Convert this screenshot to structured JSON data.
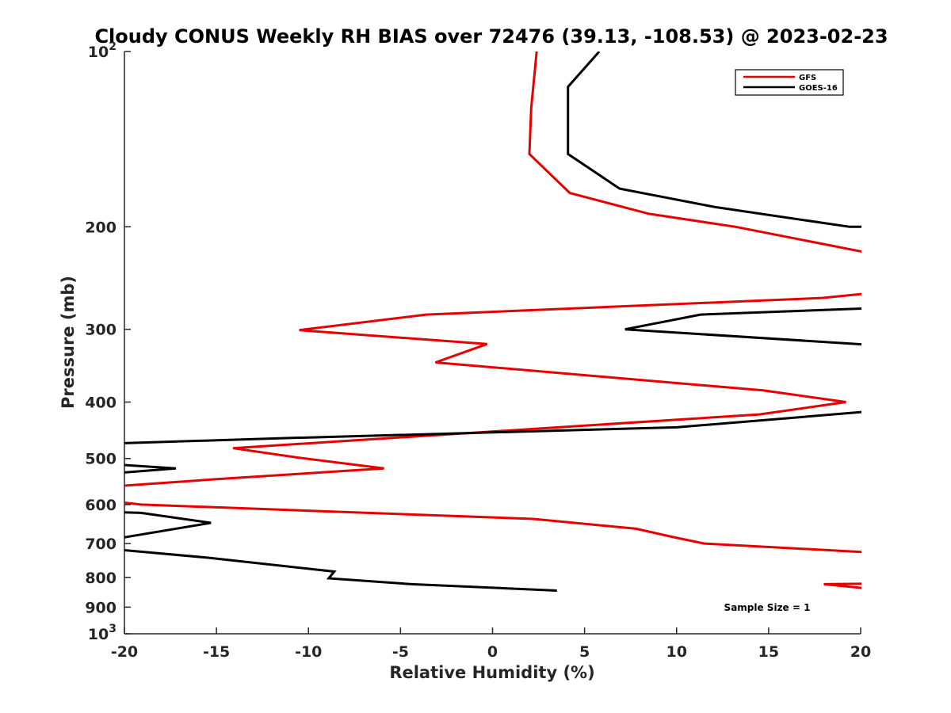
{
  "chart_data": {
    "type": "line",
    "title": "Cloudy CONUS Weekly RH BIAS over 72476 (39.13, -108.53) @ 2023-02-23",
    "xlabel": "Relative Humidity (%)",
    "ylabel": "Pressure (mb)",
    "xlim": [
      -20,
      20
    ],
    "ylim": [
      100,
      1000
    ],
    "yscale": "log",
    "y_reversed": true,
    "x_ticks": [
      "-20",
      "-15",
      "-10",
      "-5",
      "0",
      "5",
      "10",
      "15",
      "20"
    ],
    "y_ticks": [
      {
        "value": 100,
        "base": "10",
        "exp": "2"
      },
      {
        "value": 200,
        "label": "200"
      },
      {
        "value": 300,
        "label": "300"
      },
      {
        "value": 400,
        "label": "400"
      },
      {
        "value": 500,
        "label": "500"
      },
      {
        "value": 600,
        "label": "600"
      },
      {
        "value": 700,
        "label": "700"
      },
      {
        "value": 800,
        "label": "800"
      },
      {
        "value": 900,
        "label": "900"
      },
      {
        "value": 1000,
        "base": "10",
        "exp": "3"
      }
    ],
    "grid": false,
    "legend_position": "top-right",
    "annotation": "Sample Size = 1",
    "series": [
      {
        "name": "GFS",
        "color": "#e60000",
        "points": [
          [
            2.4,
            100
          ],
          [
            2.1,
            125
          ],
          [
            2.0,
            150
          ],
          [
            4.2,
            175
          ],
          [
            8.5,
            190
          ],
          [
            13.2,
            200
          ],
          [
            20.5,
            222
          ],
          [
            20.5,
            260
          ],
          [
            17.9,
            265
          ],
          [
            -3.6,
            283
          ],
          [
            -10.5,
            301
          ],
          [
            -0.3,
            318
          ],
          [
            -3.1,
            342
          ],
          [
            14.7,
            382
          ],
          [
            19.2,
            400
          ],
          [
            14.5,
            420
          ],
          [
            -14.1,
            480
          ],
          [
            -10.6,
            498
          ],
          [
            -5.9,
            520
          ],
          [
            -14.8,
            542
          ],
          [
            -20.5,
            558
          ],
          [
            -20.5,
            593
          ],
          [
            -19.1,
            600
          ],
          [
            2.2,
            635
          ],
          [
            7.8,
            660
          ],
          [
            9.6,
            680
          ],
          [
            11.5,
            700
          ],
          [
            20.5,
            725
          ],
          [
            20.5,
            820
          ],
          [
            18.0,
            822
          ],
          [
            20.5,
            837
          ]
        ]
      },
      {
        "name": "GOES-16",
        "color": "#000000",
        "points": [
          [
            5.8,
            100
          ],
          [
            4.1,
            115
          ],
          [
            4.1,
            150
          ],
          [
            6.9,
            172
          ],
          [
            12.1,
            185
          ],
          [
            19.4,
            200
          ],
          [
            20.5,
            200
          ],
          [
            20.5,
            276
          ],
          [
            11.3,
            283
          ],
          [
            7.2,
            300
          ],
          [
            20.5,
            319
          ],
          [
            20.5,
            415
          ],
          [
            10.0,
            442
          ],
          [
            -10.9,
            461
          ],
          [
            -20.5,
            471
          ],
          [
            -20.5,
            512
          ],
          [
            -17.2,
            520
          ],
          [
            -20.5,
            530
          ],
          [
            -20.5,
            618
          ],
          [
            -19.1,
            620
          ],
          [
            -15.3,
            645
          ],
          [
            -20.5,
            687
          ],
          [
            -20.5,
            716
          ],
          [
            -15.5,
            740
          ],
          [
            -8.6,
            782
          ],
          [
            -8.9,
            803
          ],
          [
            -4.4,
            822
          ],
          [
            3.5,
            843
          ]
        ]
      }
    ]
  }
}
